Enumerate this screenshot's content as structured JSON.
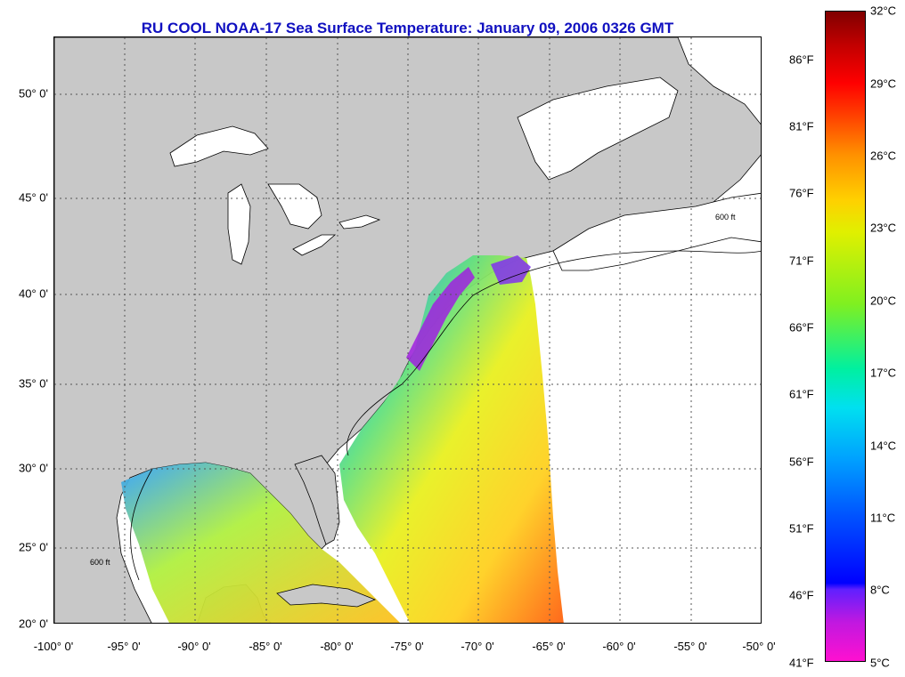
{
  "title": "RU COOL  NOAA-17  Sea Surface Temperature:  January 09, 2006 0326 GMT",
  "latitude_labels": [
    "50° 0'",
    "45° 0'",
    "40° 0'",
    "35° 0'",
    "30° 0'",
    "25° 0'",
    "20° 0'"
  ],
  "longitude_labels": [
    "-100° 0'",
    "-95° 0'",
    "-90° 0'",
    "-85° 0'",
    "-80° 0'",
    "-75° 0'",
    "-70° 0'",
    "-65° 0'",
    "-60° 0'",
    "-55° 0'",
    "-50° 0'"
  ],
  "colorbar": {
    "fahrenheit_labels": [
      "86°F",
      "81°F",
      "76°F",
      "71°F",
      "66°F",
      "61°F",
      "56°F",
      "51°F",
      "46°F",
      "41°F"
    ],
    "celsius_labels": [
      "32°C",
      "29°C",
      "26°C",
      "23°C",
      "20°C",
      "17°C",
      "14°C",
      "11°C",
      "8°C",
      "5°C"
    ]
  },
  "contour_label": "600 ft",
  "colors": {
    "land": "#c8c8c8",
    "title": "#1010c0",
    "grid": "#555555"
  }
}
